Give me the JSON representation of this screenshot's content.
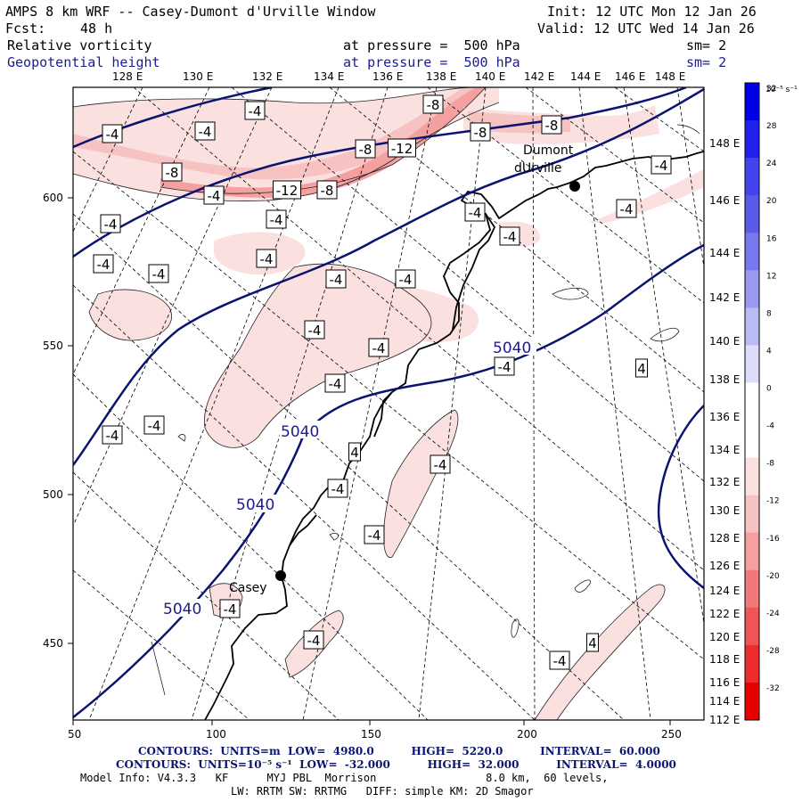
{
  "header": {
    "title": "AMPS 8 km WRF -- Casey-Dumont d'Urville Window",
    "init": "Init: 12 UTC Mon 12 Jan 26",
    "fcst_label": "Fcst:",
    "fcst_value": "48 h",
    "valid": "Valid: 12 UTC Wed 14 Jan 26",
    "field1": "Relative vorticity",
    "field1_pressure": "at pressure =  500 hPa",
    "field1_sm": "sm= 2",
    "field2": "Geopotential height",
    "field2_pressure": "at pressure =  500 hPa",
    "field2_sm": "sm= 2"
  },
  "top_lon_labels": [
    "128 E",
    "130 E",
    "132 E",
    "134 E",
    "136 E",
    "138 E",
    "140 E",
    "142 E",
    "144 E",
    "146 E",
    "148 E"
  ],
  "right_lon_labels": [
    "148 E",
    "146 E",
    "144 E",
    "142 E",
    "140 E",
    "138 E",
    "136 E",
    "134 E",
    "132 E",
    "130 E",
    "128 E",
    "126 E",
    "124 E",
    "122 E",
    "120 E",
    "118 E",
    "116 E",
    "114 E",
    "112 E"
  ],
  "x_ticks": [
    "50",
    "100",
    "150",
    "200",
    "250"
  ],
  "y_ticks": [
    "600",
    "550",
    "500",
    "450"
  ],
  "stations": [
    {
      "name_line1": "Dumont",
      "name_line2": "dUrville"
    },
    {
      "name_line1": "Casey",
      "name_line2": ""
    }
  ],
  "height_labels": [
    "5040",
    "5040",
    "5040",
    "5040"
  ],
  "vort_labels": [
    "-4",
    "-4",
    "-4",
    "-8",
    "-4",
    "-4",
    "-8",
    "-8",
    "-12",
    "-8",
    "-12",
    "-8",
    "-8",
    "-4",
    "-4",
    "-4",
    "-4",
    "-4",
    "-4",
    "-4",
    "-4",
    "-4",
    "-4",
    "-4",
    "-4",
    "-4",
    "-4",
    "-4",
    "-4",
    "-4",
    "4",
    "-4",
    "4",
    "-4",
    "-4",
    "-4",
    "4",
    "-4",
    "-4"
  ],
  "colorbar": {
    "unit": "10⁻⁵ s⁻¹",
    "labels": [
      "32",
      "28",
      "24",
      "20",
      "16",
      "12",
      "8",
      "4",
      "0",
      "-4",
      "-8",
      "-12",
      "-16",
      "-20",
      "-24",
      "-28",
      "-32"
    ],
    "colors": [
      "#0000e6",
      "#2222ee",
      "#4444ee",
      "#5b5be8",
      "#7777ee",
      "#9999f2",
      "#bbbbf6",
      "#ddddfb",
      "#ffffff",
      "#ffffff",
      "#fbe0e0",
      "#f7c2c2",
      "#f5a0a0",
      "#f07878",
      "#ee5555",
      "#ec2e2e",
      "#e60000"
    ]
  },
  "footer": {
    "line1": "CONTOURS:  UNITS=m  LOW=  4980.0          HIGH=  5220.0          INTERVAL=  60.000",
    "line2": "CONTOURS:  UNITS=10⁻⁵ s⁻¹  LOW=  -32.000          HIGH=  32.000          INTERVAL=  4.0000",
    "line3": "Model Info: V4.3.3   KF      MYJ PBL  Morrison                 8.0 km,  60 levels,",
    "line4": "LW: RRTM SW: RRTMG   DIFF: simple KM: 2D Smagor"
  }
}
